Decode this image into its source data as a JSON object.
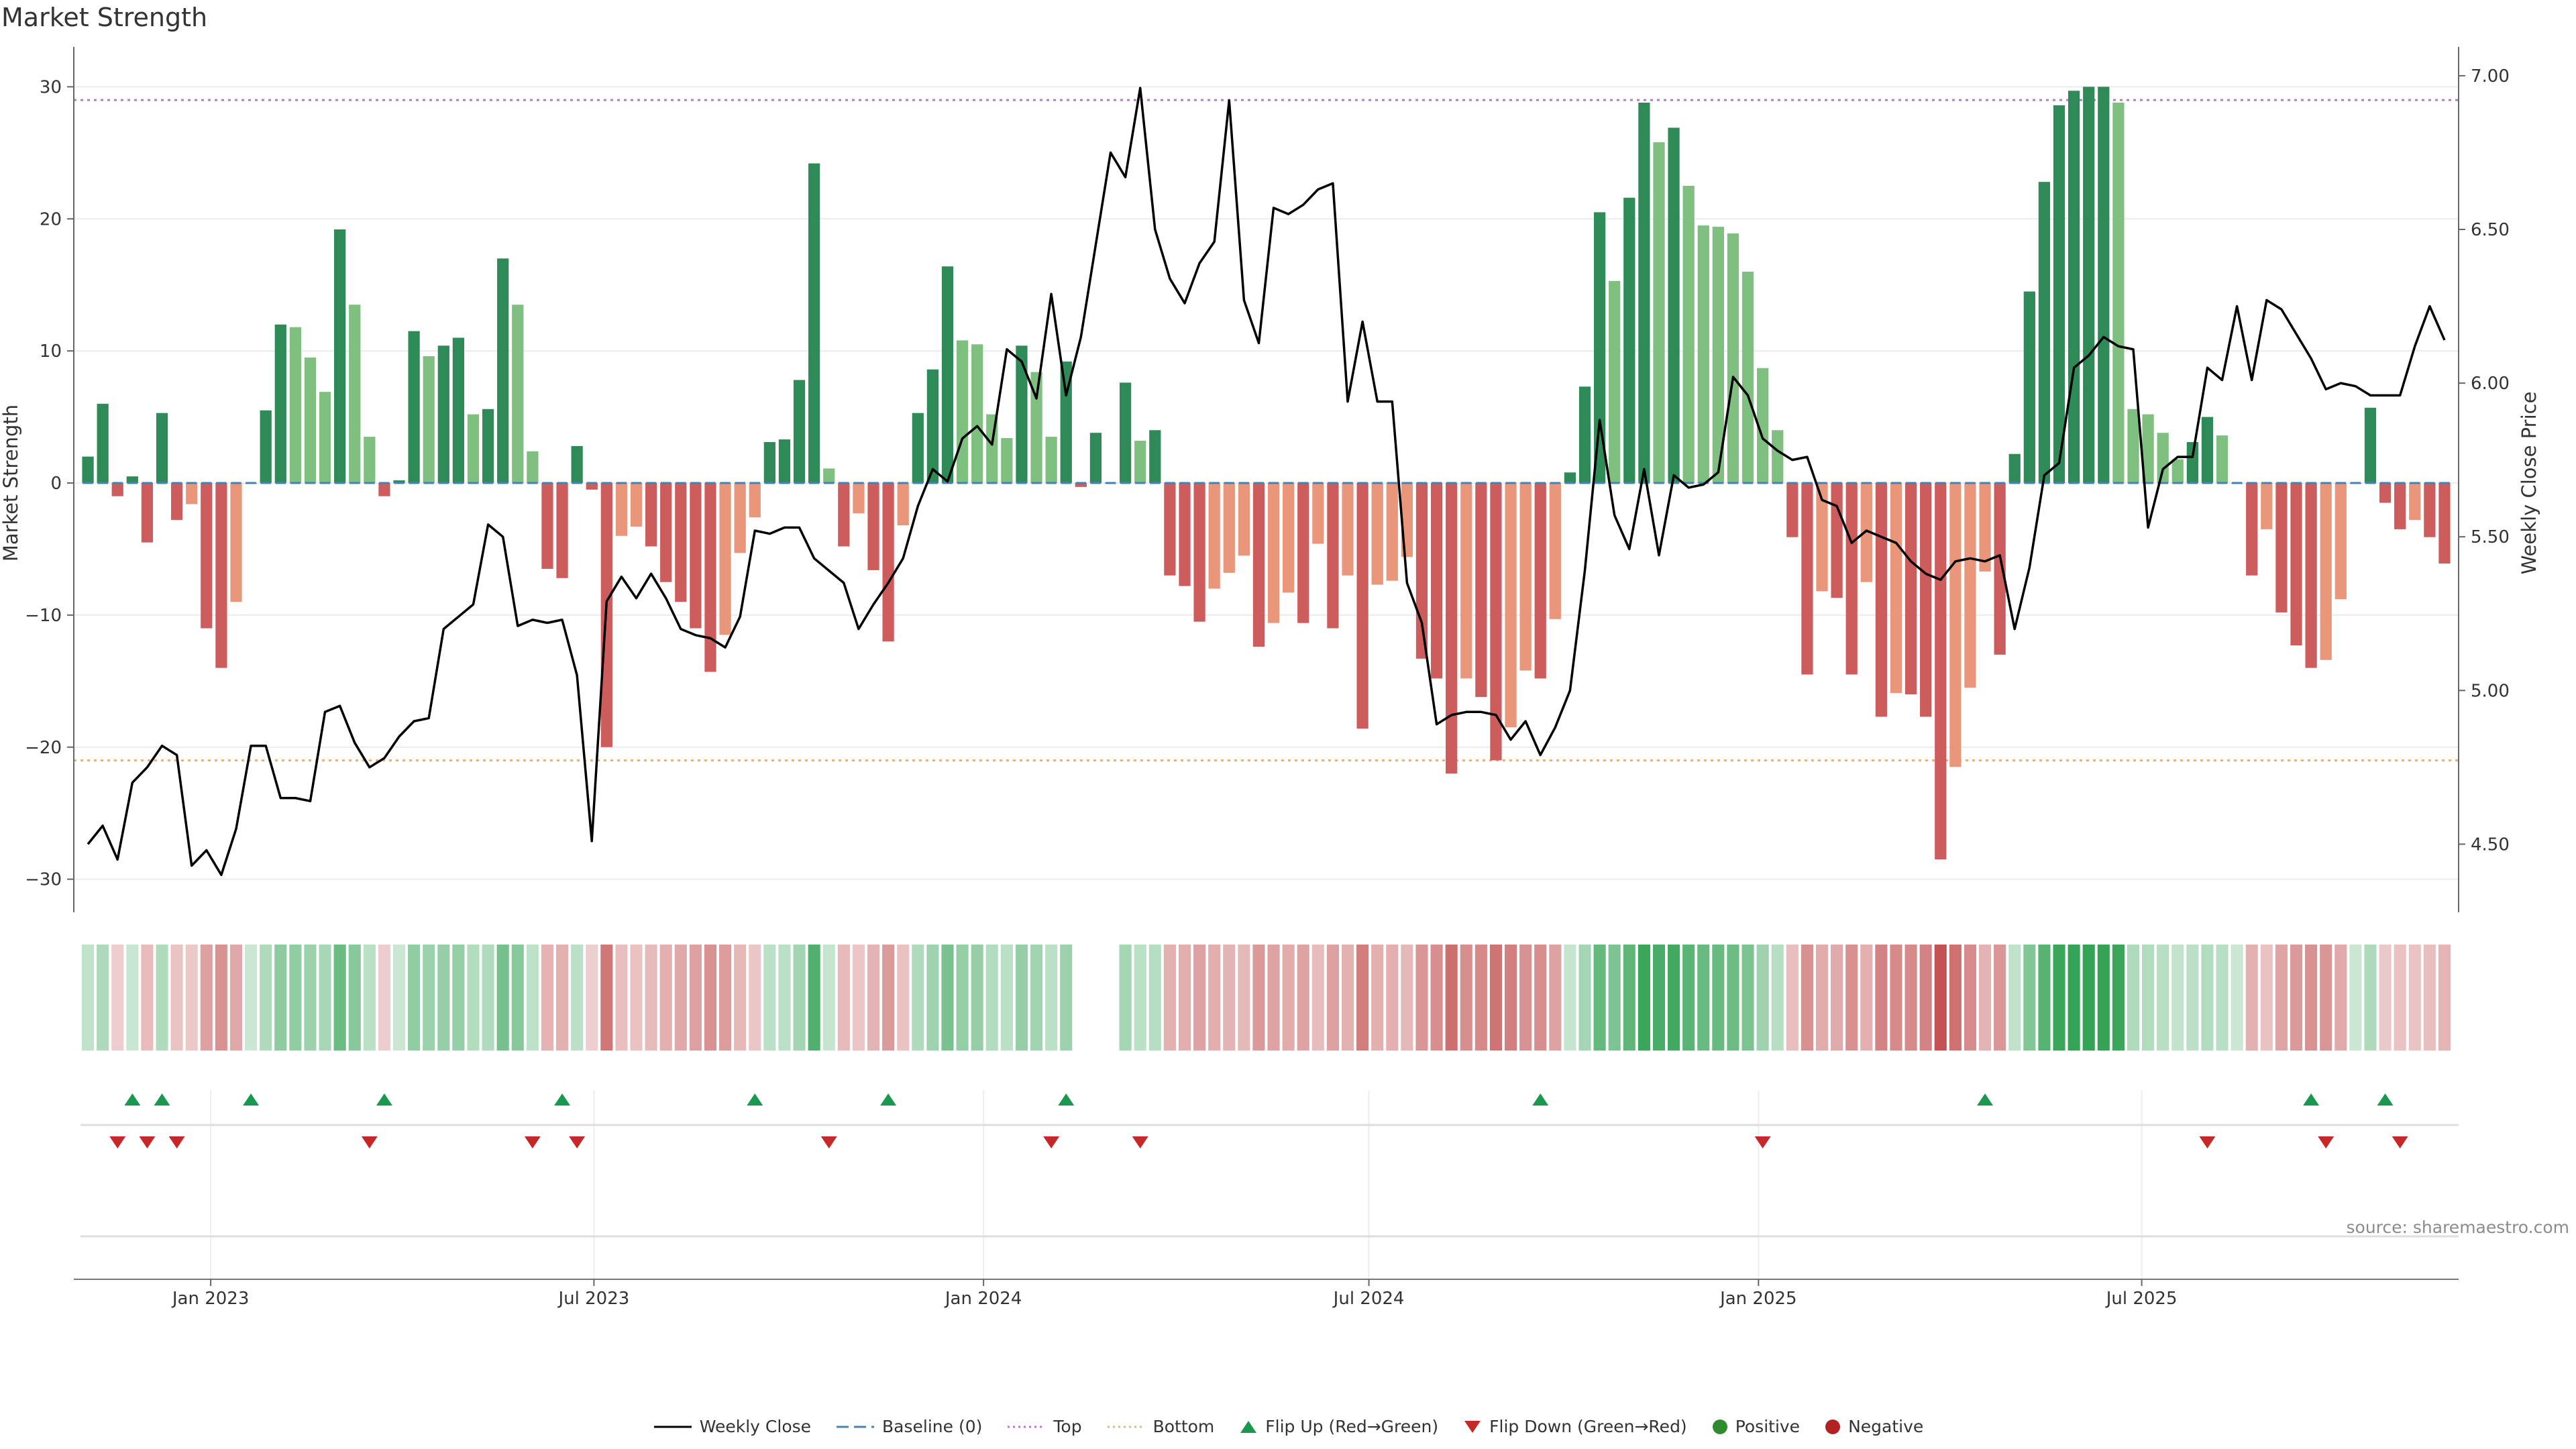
{
  "title": "Market Strength",
  "source": "source: sharemaestro.com",
  "colors": {
    "strong_green": "#2e8b57",
    "light_green": "#7fbf7f",
    "strong_red": "#cd5c5c",
    "light_red": "#e9967a",
    "line": "#000000",
    "top_line": "#b07cc6",
    "bottom_line": "#f0b070",
    "baseline": "#4682b4",
    "flip_up": "#1a9850",
    "flip_down": "#c62828"
  },
  "chart_data": {
    "type": "bar",
    "title": "Market Strength",
    "ylabel": "Market Strength",
    "y2label": "Weekly Close Price",
    "ylim": [
      -32,
      32
    ],
    "y2lim": [
      4.3,
      7.05
    ],
    "yticks": [
      30,
      20,
      10,
      0,
      -10,
      -20,
      -30
    ],
    "ytick_labels": [
      "30",
      "20",
      "10",
      "0",
      "−10",
      "−20",
      "−30"
    ],
    "y2ticks": [
      7.0,
      6.5,
      6.0,
      5.5,
      5.0,
      4.5
    ],
    "y2tick_labels": [
      "7.00",
      "6.50",
      "6.00",
      "5.50",
      "5.00",
      "4.50"
    ],
    "top_level": 29,
    "bottom_level": -21,
    "x_start": "2022-11-04",
    "week_days": 7,
    "xticks": [
      {
        "label": "Jan 2023",
        "date": "2023-01-01"
      },
      {
        "label": "Jul 2023",
        "date": "2023-07-01"
      },
      {
        "label": "Jan 2024",
        "date": "2024-01-01"
      },
      {
        "label": "Jul 2024",
        "date": "2024-07-01"
      },
      {
        "label": "Jan 2025",
        "date": "2025-01-01"
      },
      {
        "label": "Jul 2025",
        "date": "2025-07-01"
      }
    ],
    "strength": [
      2,
      6,
      -1,
      0.5,
      -4.5,
      5.3,
      -2.8,
      -1.6,
      -11,
      -14,
      -9,
      0,
      5.5,
      12,
      11.8,
      9.5,
      6.9,
      19.2,
      13.5,
      3.5,
      -1,
      0.2,
      11.5,
      9.6,
      10.4,
      11,
      5.2,
      5.6,
      17,
      13.5,
      2.4,
      -6.5,
      -7.2,
      2.8,
      -0.5,
      -20,
      -4,
      -3.3,
      -4.8,
      -7.5,
      -9,
      -11,
      -14.3,
      -11.5,
      -5.3,
      -2.6,
      3.1,
      3.3,
      7.8,
      24.2,
      1.1,
      -4.8,
      -2.3,
      -6.6,
      -12,
      -3.2,
      5.3,
      8.6,
      16.4,
      10.8,
      10.5,
      5.2,
      3.4,
      10.4,
      8.4,
      3.5,
      9.2,
      -0.3,
      3.8,
      0,
      7.6,
      3.2,
      4,
      -7,
      -7.8,
      -10.5,
      -8,
      -6.8,
      -5.5,
      -12.4,
      -10.6,
      -8.3,
      -10.6,
      -4.6,
      -11,
      -7,
      -18.6,
      -7.7,
      -7.4,
      -5.6,
      -13.3,
      -14.8,
      -22,
      -14.8,
      -16.2,
      -21,
      -18.5,
      -14.2,
      -14.8,
      -10.3,
      0.8,
      7.3,
      20.5,
      15.3,
      21.6,
      28.8,
      25.8,
      26.9,
      22.5,
      19.5,
      19.4,
      18.9,
      16,
      8.7,
      4,
      -4.1,
      -14.5,
      -8.2,
      -8.7,
      -14.5,
      -7.5,
      -17.7,
      -15.9,
      -16,
      -17.7,
      -28.5,
      -21.5,
      -15.5,
      -6.7,
      -13,
      2.2,
      14.5,
      22.8,
      28.6,
      29.7,
      30,
      30,
      28.8,
      5.6,
      5.2,
      3.8,
      1.8,
      3.1,
      5,
      3.6,
      0,
      -7,
      -3.5,
      -9.8,
      -12.3,
      -14,
      -13.4,
      -8.8,
      0,
      5.7,
      -1.5,
      -3.5,
      -2.8,
      -4.1,
      -6.1
    ],
    "close": [
      4.5,
      4.56,
      4.45,
      4.7,
      4.75,
      4.82,
      4.79,
      4.43,
      4.48,
      4.4,
      4.55,
      4.82,
      4.82,
      4.65,
      4.65,
      4.64,
      4.93,
      4.95,
      4.83,
      4.75,
      4.78,
      4.85,
      4.9,
      4.91,
      5.2,
      5.24,
      5.28,
      5.54,
      5.5,
      5.21,
      5.23,
      5.22,
      5.23,
      5.05,
      4.51,
      5.29,
      5.37,
      5.3,
      5.38,
      5.3,
      5.2,
      5.18,
      5.17,
      5.14,
      5.24,
      5.52,
      5.51,
      5.53,
      5.53,
      5.43,
      5.39,
      5.35,
      5.2,
      5.28,
      5.35,
      5.43,
      5.6,
      5.72,
      5.68,
      5.82,
      5.86,
      5.8,
      6.11,
      6.07,
      5.95,
      6.29,
      5.96,
      6.15,
      6.45,
      6.75,
      6.67,
      6.96,
      6.5,
      6.34,
      6.26,
      6.39,
      6.46,
      6.92,
      6.27,
      6.13,
      6.57,
      6.55,
      6.58,
      6.63,
      6.65,
      5.94,
      6.2,
      5.94,
      5.94,
      5.35,
      5.22,
      4.89,
      4.92,
      4.93,
      4.93,
      4.92,
      4.84,
      4.9,
      4.79,
      4.88,
      5.0,
      5.39,
      5.88,
      5.57,
      5.46,
      5.72,
      5.44,
      5.7,
      5.66,
      5.67,
      5.71,
      6.02,
      5.96,
      5.82,
      5.78,
      5.75,
      5.76,
      5.62,
      5.6,
      5.48,
      5.52,
      5.5,
      5.48,
      5.42,
      5.38,
      5.36,
      5.42,
      5.43,
      5.42,
      5.44,
      5.2,
      5.4,
      5.7,
      5.74,
      6.05,
      6.09,
      6.15,
      6.12,
      6.11,
      5.53,
      5.72,
      5.76,
      5.76,
      6.05,
      6.01,
      6.25,
      6.01,
      6.27,
      6.24,
      6.16,
      6.08,
      5.98,
      6.0,
      5.99,
      5.96,
      5.96,
      5.96,
      6.12,
      6.25,
      6.14
    ],
    "flip_up_weeks": [
      3,
      5,
      11,
      20,
      32,
      45,
      54,
      66,
      98,
      128,
      150,
      155
    ],
    "flip_down_weeks": [
      2,
      4,
      6,
      19,
      30,
      33,
      50,
      65,
      71,
      113,
      143,
      151,
      156
    ],
    "heatmap_gaps": [
      67,
      68,
      69
    ]
  },
  "legend": {
    "items": [
      {
        "key": "line",
        "label": "Weekly Close"
      },
      {
        "key": "baseline",
        "label": "Baseline (0)"
      },
      {
        "key": "top",
        "label": "Top"
      },
      {
        "key": "bottom",
        "label": "Bottom"
      },
      {
        "key": "flip_up",
        "label": "Flip Up (Red→Green)"
      },
      {
        "key": "flip_down",
        "label": "Flip Down (Green→Red)"
      },
      {
        "key": "positive",
        "label": "Positive"
      },
      {
        "key": "negative",
        "label": "Negative"
      }
    ]
  }
}
